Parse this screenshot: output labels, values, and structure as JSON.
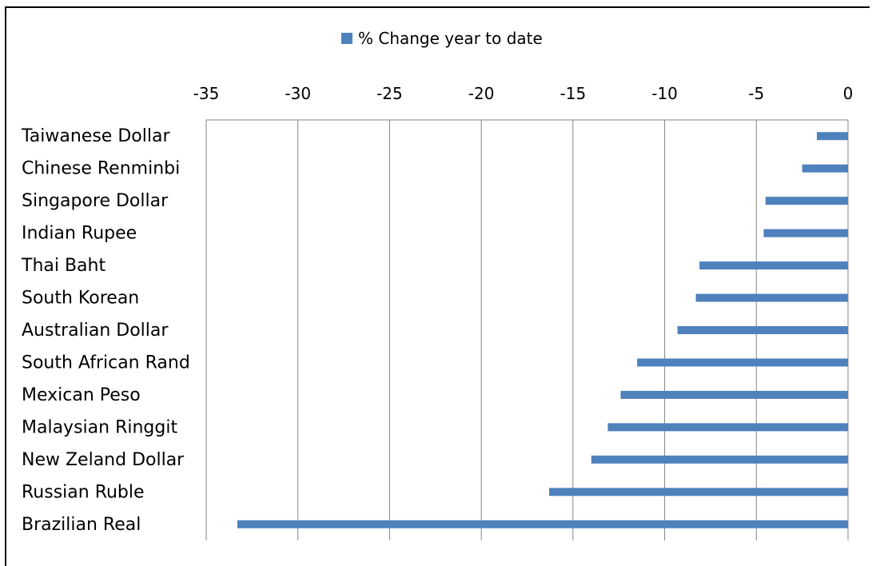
{
  "chart_data": {
    "type": "bar",
    "orientation": "horizontal",
    "categories": [
      "Taiwanese Dollar",
      "Chinese Renminbi",
      "Singapore Dollar",
      "Indian Rupee",
      "Thai Baht",
      "South Korean",
      "Australian Dollar",
      "South African Rand",
      "Mexican Peso",
      "Malaysian Ringgit",
      "New Zeland Dollar",
      "Russian Ruble",
      "Brazilian Real"
    ],
    "series": [
      {
        "name": "% Change year to date",
        "color": "#4f81bd",
        "values": [
          -1.7,
          -2.5,
          -4.5,
          -4.6,
          -8.1,
          -8.3,
          -9.3,
          -11.5,
          -12.4,
          -13.1,
          -14,
          -16.3,
          -33.3
        ]
      }
    ],
    "xlim": [
      -35,
      0
    ],
    "x_ticks": [
      "-35",
      "-30",
      "-25",
      "-20",
      "-15",
      "-10",
      "-5",
      "0"
    ],
    "x_axis_position": "top",
    "grid": "vertical",
    "legend": "top-center",
    "title": "",
    "xlabel": "",
    "ylabel": ""
  }
}
